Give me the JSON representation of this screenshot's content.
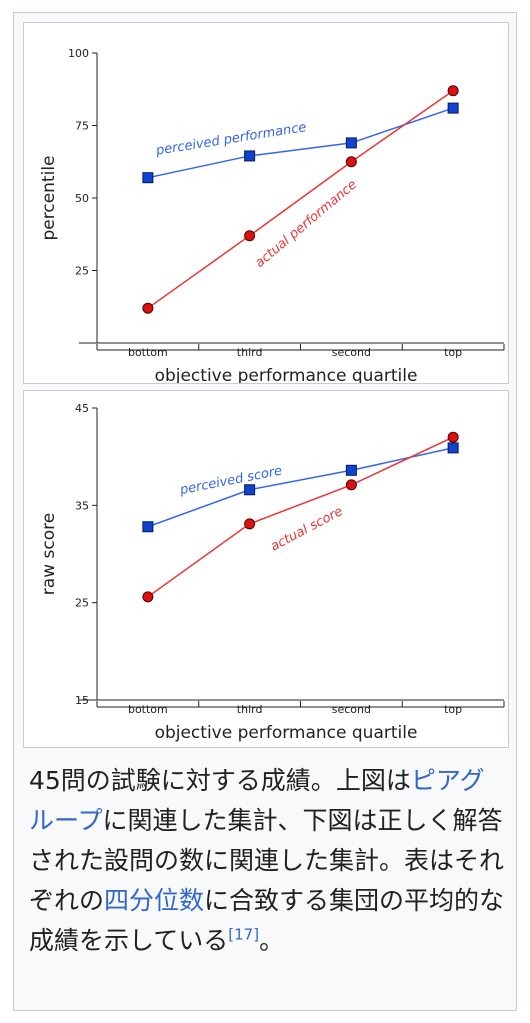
{
  "chart_data": [
    {
      "type": "line",
      "categories": [
        "bottom",
        "third",
        "second",
        "top"
      ],
      "xlabel": "objective performance quartile",
      "ylabel": "percentile",
      "ylim": [
        0,
        100
      ],
      "yticks": [
        25,
        50,
        75,
        100
      ],
      "grid": false,
      "series": [
        {
          "name": "perceived performance",
          "color": "#3366ee",
          "marker": "square",
          "values": [
            57,
            64.5,
            69,
            81
          ]
        },
        {
          "name": "actual performance",
          "color": "#ee3333",
          "marker": "circle",
          "values": [
            12,
            37,
            62.5,
            87
          ]
        }
      ]
    },
    {
      "type": "line",
      "categories": [
        "bottom",
        "third",
        "second",
        "top"
      ],
      "xlabel": "objective performance quartile",
      "ylabel": "raw score",
      "ylim": [
        15,
        45
      ],
      "yticks": [
        15,
        25,
        35,
        45
      ],
      "grid": false,
      "series": [
        {
          "name": "perceived score",
          "color": "#3366ee",
          "marker": "square",
          "values": [
            32.8,
            36.6,
            38.6,
            40.9
          ]
        },
        {
          "name": "actual score",
          "color": "#ee3333",
          "marker": "circle",
          "values": [
            25.6,
            33.1,
            37.1,
            42
          ]
        }
      ]
    }
  ],
  "caption": {
    "part1": "45問の試験に対する成績。上図は",
    "link1": "ピアグループ",
    "part2": "に関連した集計、下図は正しく解答された設問の数に関連した集計。表はそれぞれの",
    "link2": "四分位数",
    "part3": "に合致する集団の平均的な成績を示している",
    "ref": "[17]",
    "end": "。"
  }
}
